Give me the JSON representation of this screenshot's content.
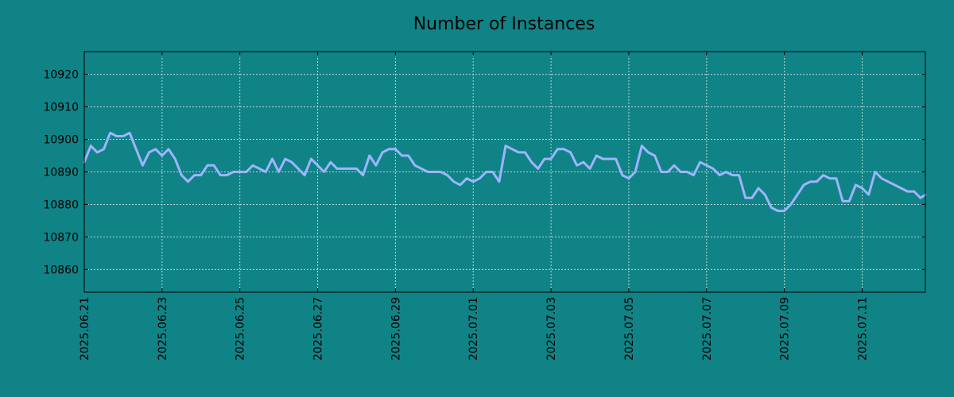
{
  "chart_data": {
    "type": "line",
    "title": "Number of Instances",
    "xlabel": "",
    "ylabel": "",
    "ylim": [
      10853,
      10927
    ],
    "xlim": [
      "2025-06-21 00:00",
      "2025-07-12 15:00"
    ],
    "grid": true,
    "colors": {
      "background": "#108386",
      "line": "#9eb4ff",
      "grid": "#b7d6d6",
      "axis": "#000000"
    },
    "x_ticks": [
      "2025.06.21",
      "2025.06.23",
      "2025.06.25",
      "2025.06.27",
      "2025.06.29",
      "2025.07.01",
      "2025.07.03",
      "2025.07.05",
      "2025.07.07",
      "2025.07.09",
      "2025.07.11"
    ],
    "y_ticks": [
      10860,
      10870,
      10880,
      10890,
      10900,
      10910,
      10920
    ],
    "series": [
      {
        "x": [
          "2025-06-21 00:00",
          "2025-06-21 04:00",
          "2025-06-21 08:00",
          "2025-06-21 12:00",
          "2025-06-21 16:00",
          "2025-06-21 20:00",
          "2025-06-22 00:00",
          "2025-06-22 04:00",
          "2025-06-22 08:00",
          "2025-06-22 12:00",
          "2025-06-22 16:00",
          "2025-06-22 20:00",
          "2025-06-23 00:00",
          "2025-06-23 04:00",
          "2025-06-23 08:00",
          "2025-06-23 12:00",
          "2025-06-23 16:00",
          "2025-06-23 20:00",
          "2025-06-24 00:00",
          "2025-06-24 04:00",
          "2025-06-24 08:00",
          "2025-06-24 12:00",
          "2025-06-24 16:00",
          "2025-06-24 20:00",
          "2025-06-25 00:00",
          "2025-06-25 04:00",
          "2025-06-25 08:00",
          "2025-06-25 12:00",
          "2025-06-25 16:00",
          "2025-06-25 20:00",
          "2025-06-26 00:00",
          "2025-06-26 04:00",
          "2025-06-26 08:00",
          "2025-06-26 12:00",
          "2025-06-26 16:00",
          "2025-06-26 20:00",
          "2025-06-27 00:00",
          "2025-06-27 04:00",
          "2025-06-27 08:00",
          "2025-06-27 12:00",
          "2025-06-27 16:00",
          "2025-06-27 20:00",
          "2025-06-28 00:00",
          "2025-06-28 04:00",
          "2025-06-28 08:00",
          "2025-06-28 12:00",
          "2025-06-28 16:00",
          "2025-06-28 20:00",
          "2025-06-29 00:00",
          "2025-06-29 04:00",
          "2025-06-29 08:00",
          "2025-06-29 12:00",
          "2025-06-29 16:00",
          "2025-06-29 20:00",
          "2025-06-30 00:00",
          "2025-06-30 04:00",
          "2025-06-30 08:00",
          "2025-06-30 12:00",
          "2025-06-30 16:00",
          "2025-06-30 20:00",
          "2025-07-01 00:00",
          "2025-07-01 04:00",
          "2025-07-01 08:00",
          "2025-07-01 12:00",
          "2025-07-01 16:00",
          "2025-07-01 20:00",
          "2025-07-02 00:00",
          "2025-07-02 04:00",
          "2025-07-02 08:00",
          "2025-07-02 12:00",
          "2025-07-02 16:00",
          "2025-07-02 20:00",
          "2025-07-03 00:00",
          "2025-07-03 04:00",
          "2025-07-03 08:00",
          "2025-07-03 12:00",
          "2025-07-03 16:00",
          "2025-07-03 20:00",
          "2025-07-04 00:00",
          "2025-07-04 04:00",
          "2025-07-04 08:00",
          "2025-07-04 12:00",
          "2025-07-04 16:00",
          "2025-07-04 20:00",
          "2025-07-05 00:00",
          "2025-07-05 04:00",
          "2025-07-05 08:00",
          "2025-07-05 12:00",
          "2025-07-05 16:00",
          "2025-07-05 20:00",
          "2025-07-06 00:00",
          "2025-07-06 04:00",
          "2025-07-06 08:00",
          "2025-07-06 12:00",
          "2025-07-06 16:00",
          "2025-07-06 20:00",
          "2025-07-07 00:00",
          "2025-07-07 04:00",
          "2025-07-07 08:00",
          "2025-07-07 12:00",
          "2025-07-07 16:00",
          "2025-07-07 20:00",
          "2025-07-08 00:00",
          "2025-07-08 04:00",
          "2025-07-08 08:00",
          "2025-07-08 12:00",
          "2025-07-08 16:00",
          "2025-07-08 20:00",
          "2025-07-09 00:00",
          "2025-07-09 04:00",
          "2025-07-09 08:00",
          "2025-07-09 12:00",
          "2025-07-09 16:00",
          "2025-07-09 20:00",
          "2025-07-10 00:00",
          "2025-07-10 04:00",
          "2025-07-10 08:00",
          "2025-07-10 12:00",
          "2025-07-10 16:00",
          "2025-07-10 20:00",
          "2025-07-11 00:00",
          "2025-07-11 04:00",
          "2025-07-11 08:00",
          "2025-07-11 12:00",
          "2025-07-11 16:00",
          "2025-07-11 20:00",
          "2025-07-12 00:00",
          "2025-07-12 04:00",
          "2025-07-12 08:00",
          "2025-07-12 12:00",
          "2025-07-12 15:00"
        ],
        "y": [
          10893,
          10898,
          10896,
          10897,
          10902,
          10901,
          10901,
          10902,
          10897,
          10892,
          10896,
          10897,
          10895,
          10897,
          10894,
          10889,
          10887,
          10889,
          10889,
          10892,
          10892,
          10889,
          10889,
          10890,
          10890,
          10890,
          10892,
          10891,
          10890,
          10894,
          10890,
          10894,
          10893,
          10891,
          10889,
          10894,
          10892,
          10890,
          10893,
          10891,
          10891,
          10891,
          10891,
          10889,
          10895,
          10892,
          10896,
          10897,
          10897,
          10895,
          10895,
          10892,
          10891,
          10890,
          10890,
          10890,
          10889,
          10887,
          10886,
          10888,
          10887,
          10888,
          10890,
          10890,
          10887,
          10898,
          10897,
          10896,
          10896,
          10893,
          10891,
          10894,
          10894,
          10897,
          10897,
          10896,
          10892,
          10893,
          10891,
          10895,
          10894,
          10894,
          10894,
          10889,
          10888,
          10890,
          10898,
          10896,
          10895,
          10890,
          10890,
          10892,
          10890,
          10890,
          10889,
          10893,
          10892,
          10891,
          10889,
          10890,
          10889,
          10889,
          10882,
          10882,
          10885,
          10883,
          10879,
          10878,
          10878,
          10880,
          10883,
          10886,
          10887,
          10887,
          10889,
          10888,
          10888,
          10881,
          10881,
          10886,
          10885,
          10883,
          10890,
          10888,
          10887,
          10886,
          10885,
          10884,
          10884,
          10882,
          10883
        ]
      }
    ]
  }
}
